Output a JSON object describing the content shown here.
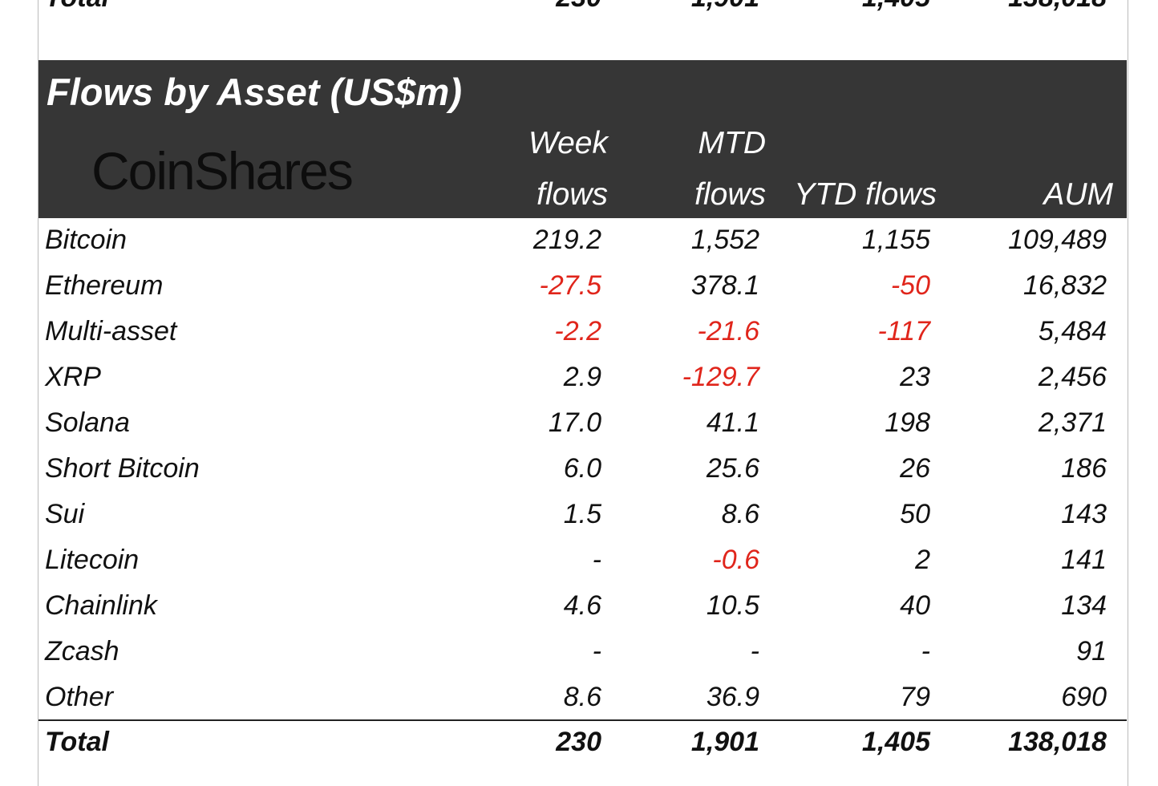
{
  "previous_table_total": {
    "label": "Total",
    "week": "230",
    "mtd": "1,901",
    "ytd": "1,405",
    "aum": "138,018"
  },
  "title": "Flows by Asset (US$m)",
  "logo": "CoinShares",
  "columns": {
    "week": [
      "Week",
      "flows"
    ],
    "mtd": [
      "MTD",
      "flows"
    ],
    "ytd": "YTD flows",
    "aum": "AUM"
  },
  "colors": {
    "header_bg": "#363636",
    "negative": "#e0251b"
  },
  "rows": [
    {
      "asset": "Bitcoin",
      "week": "219.2",
      "mtd": "1,552",
      "ytd": "1,155",
      "aum": "109,489"
    },
    {
      "asset": "Ethereum",
      "week": "-27.5",
      "mtd": "378.1",
      "ytd": "-50",
      "aum": "16,832"
    },
    {
      "asset": "Multi-asset",
      "week": "-2.2",
      "mtd": "-21.6",
      "ytd": "-117",
      "aum": "5,484"
    },
    {
      "asset": "XRP",
      "week": "2.9",
      "mtd": "-129.7",
      "ytd": "23",
      "aum": "2,456"
    },
    {
      "asset": "Solana",
      "week": "17.0",
      "mtd": "41.1",
      "ytd": "198",
      "aum": "2,371"
    },
    {
      "asset": "Short Bitcoin",
      "week": "6.0",
      "mtd": "25.6",
      "ytd": "26",
      "aum": "186"
    },
    {
      "asset": "Sui",
      "week": "1.5",
      "mtd": "8.6",
      "ytd": "50",
      "aum": "143"
    },
    {
      "asset": "Litecoin",
      "week": "-",
      "mtd": "-0.6",
      "ytd": "2",
      "aum": "141"
    },
    {
      "asset": "Chainlink",
      "week": "4.6",
      "mtd": "10.5",
      "ytd": "40",
      "aum": "134"
    },
    {
      "asset": "Zcash",
      "week": "-",
      "mtd": "-",
      "ytd": "-",
      "aum": "91"
    },
    {
      "asset": "Other",
      "week": "8.6",
      "mtd": "36.9",
      "ytd": "79",
      "aum": "690"
    }
  ],
  "total": {
    "label": "Total",
    "week": "230",
    "mtd": "1,901",
    "ytd": "1,405",
    "aum": "138,018"
  }
}
